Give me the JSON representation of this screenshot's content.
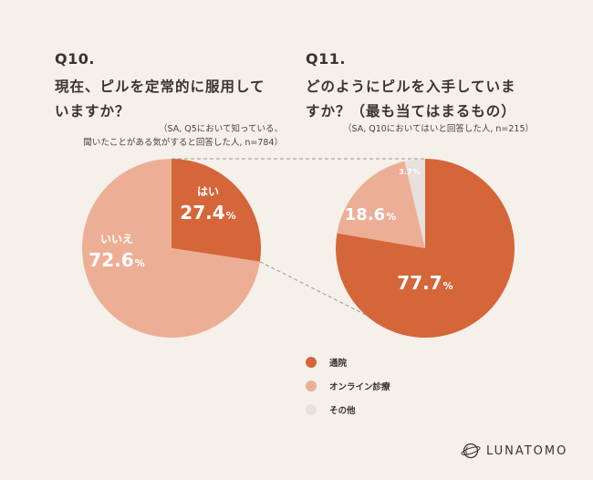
{
  "colors": {
    "background": "#f5f0ea",
    "primary": "#d4663a",
    "secondary": "#edae96",
    "tertiary": "#e6e1dc",
    "connector": "#a09890"
  },
  "q10": {
    "number": "Q10.",
    "title_line1": "現在、ピルを定常的に服用して",
    "title_line2": "いますか？",
    "note_line1": "（SA, Q5において知っている、",
    "note_line2": "聞いたことがある気がすると回答した人, n=784）"
  },
  "q11": {
    "number": "Q11.",
    "title_line1": "どのようにピルを入手していま",
    "title_line2": "すか？（最も当てはまるもの）",
    "note": "（SA, Q10においてはいと回答した人, n=215）"
  },
  "legend": [
    {
      "label": "通院",
      "color": "#d4663a"
    },
    {
      "label": "オンライン診療",
      "color": "#edae96"
    },
    {
      "label": "その他",
      "color": "#e6e1dc"
    }
  ],
  "brand": {
    "name": "LUNATOMO"
  },
  "chart_data": [
    {
      "type": "pie",
      "title": "Q10.",
      "slices": [
        {
          "label": "はい",
          "value": 27.4,
          "display": "27.4",
          "color": "#d4663a",
          "text_color": "#ffffff"
        },
        {
          "label": "いいえ",
          "value": 72.6,
          "display": "72.6",
          "color": "#edae96",
          "text_color": "#ffffff"
        }
      ],
      "unit": "%"
    },
    {
      "type": "pie",
      "title": "Q11.",
      "slices": [
        {
          "label": "通院",
          "value": 77.7,
          "display": "77.7",
          "color": "#d4663a",
          "text_color": "#ffffff"
        },
        {
          "label": "オンライン診療",
          "value": 18.6,
          "display": "18.6",
          "color": "#edae96",
          "text_color": "#ffffff"
        },
        {
          "label": "その他",
          "value": 3.7,
          "display": "3.7",
          "color": "#e6e1dc",
          "text_color": "#ffffff"
        }
      ],
      "unit": "%"
    }
  ]
}
